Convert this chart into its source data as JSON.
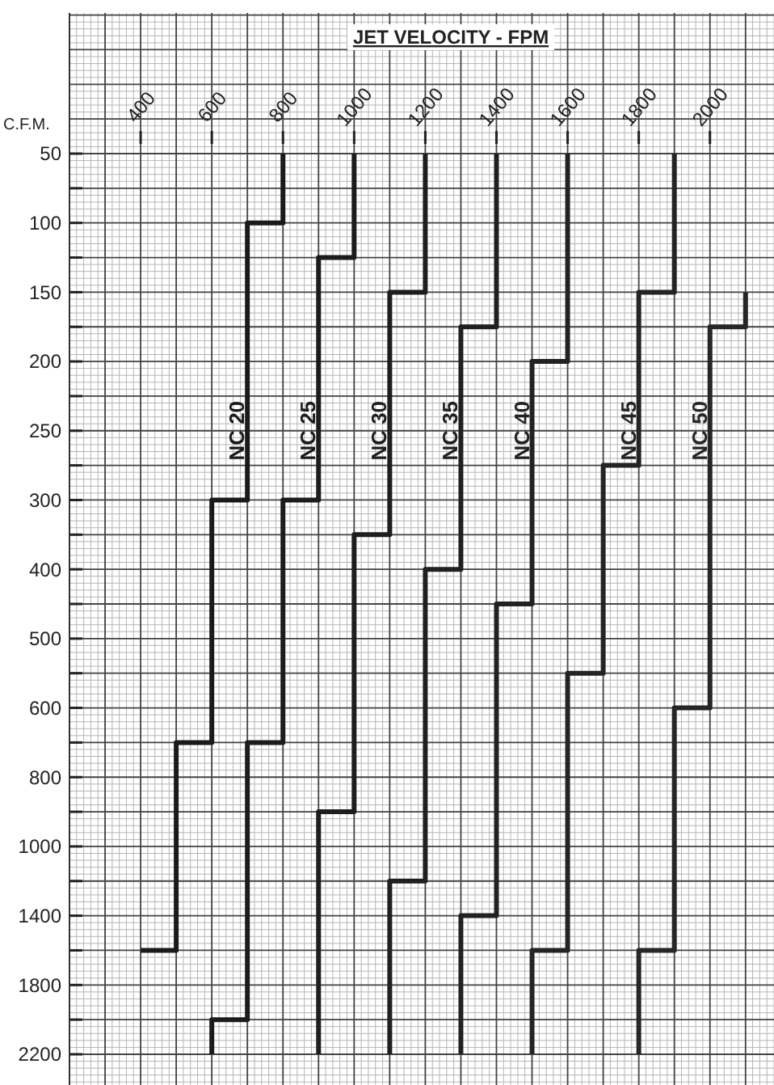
{
  "chart_data": {
    "type": "step",
    "orientation": "horizontal",
    "xlabel": "JET VELOCITY - FPM",
    "ylabel": "C.F.M.",
    "grid": true,
    "categories": [
      "50",
      null,
      "100",
      null,
      "150",
      null,
      "200",
      null,
      "250",
      null,
      "300",
      null,
      "400",
      null,
      "500",
      null,
      "600",
      null,
      "800",
      null,
      "1000",
      null,
      "1400",
      null,
      "1800",
      null,
      "2200"
    ],
    "xlim": [
      200,
      2180
    ],
    "xticks": [
      400,
      600,
      800,
      1000,
      1200,
      1400,
      1600,
      1800,
      2000
    ],
    "series": [
      {
        "name": "NC 20",
        "color": "#1a1a1a",
        "values": [
          800,
          800,
          700,
          700,
          700,
          700,
          700,
          700,
          700,
          700,
          600,
          600,
          600,
          600,
          600,
          600,
          600,
          500,
          500,
          500,
          500,
          500,
          500,
          400,
          null,
          null,
          null
        ]
      },
      {
        "name": "NC 25",
        "color": "#1c1c1c",
        "values": [
          1000,
          1000,
          1000,
          900,
          900,
          900,
          900,
          900,
          900,
          900,
          800,
          800,
          800,
          800,
          800,
          800,
          800,
          700,
          700,
          700,
          700,
          700,
          700,
          700,
          700,
          600,
          600
        ]
      },
      {
        "name": "NC 30",
        "color": "#1e1e1e",
        "values": [
          1200,
          1200,
          1200,
          1200,
          1100,
          1100,
          1100,
          1100,
          1100,
          1100,
          1100,
          1000,
          1000,
          1000,
          1000,
          1000,
          1000,
          1000,
          1000,
          900,
          900,
          900,
          900,
          900,
          900,
          900,
          900
        ]
      },
      {
        "name": "NC 35",
        "color": "#202020",
        "values": [
          1400,
          1400,
          1400,
          1400,
          1400,
          1300,
          1300,
          1300,
          1300,
          1300,
          1300,
          1300,
          1200,
          1200,
          1200,
          1200,
          1200,
          1200,
          1200,
          1200,
          1200,
          1100,
          1100,
          1100,
          1100,
          1100,
          1100
        ]
      },
      {
        "name": "NC 40",
        "color": "#222222",
        "values": [
          1600,
          1600,
          1600,
          1600,
          1600,
          1600,
          1500,
          1500,
          1500,
          1500,
          1500,
          1500,
          1500,
          1400,
          1400,
          1400,
          1400,
          1400,
          1400,
          1400,
          1400,
          1400,
          1300,
          1300,
          1300,
          1300,
          1300
        ]
      },
      {
        "name": "NC 45",
        "color": "#242424",
        "values": [
          1900,
          1900,
          1900,
          1900,
          1800,
          1800,
          1800,
          1800,
          1800,
          1700,
          1700,
          1700,
          1700,
          1700,
          1700,
          1600,
          1600,
          1600,
          1600,
          1600,
          1600,
          1600,
          1600,
          1500,
          1500,
          1500,
          1500
        ]
      },
      {
        "name": "NC 50",
        "color": "#262626",
        "values": [
          null,
          null,
          null,
          null,
          2100,
          2000,
          2000,
          2000,
          2000,
          2000,
          2000,
          2000,
          2000,
          2000,
          2000,
          2000,
          1900,
          1900,
          1900,
          1900,
          1900,
          1900,
          1900,
          1800,
          1800,
          1800,
          1800
        ]
      }
    ]
  }
}
